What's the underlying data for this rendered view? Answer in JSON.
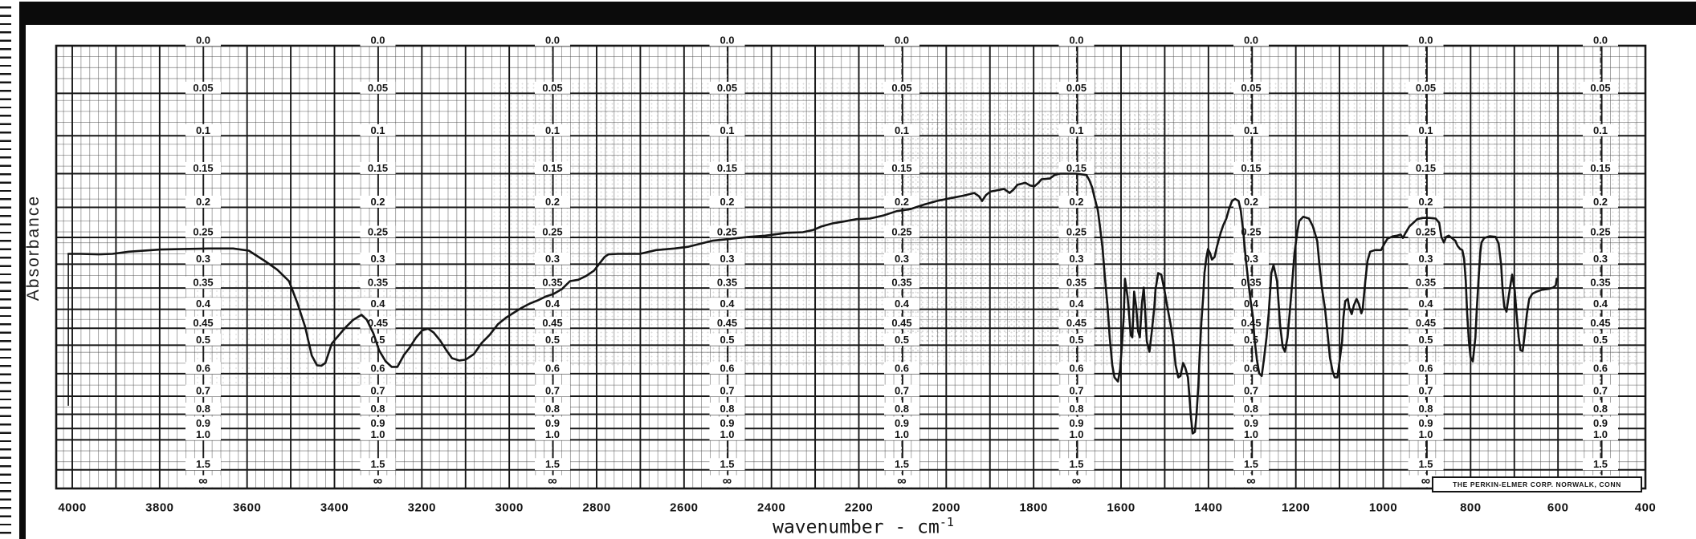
{
  "colors": {
    "ink": "#141414",
    "paper": "#ffffff",
    "grid_minor": "#4a4a4a",
    "grid_major": "#161616"
  },
  "chart_data": {
    "type": "line",
    "xlabel": "wavenumber - cm⁻¹",
    "xlabel_text": "wavenumber - cm",
    "xlabel_exponent": "-1",
    "ylabel": "Absorbance",
    "branding": "THE PERKIN-ELMER CORP. NORWALK, CONN",
    "x_axis": {
      "min": 400,
      "max": 4000,
      "unit": "cm⁻¹",
      "direction": "decreasing left to right",
      "major_step": 100,
      "minor_step": 20,
      "tick_step": 200,
      "tick_labels": [
        "4000",
        "3800",
        "3600",
        "3400",
        "3200",
        "3000",
        "2800",
        "2600",
        "2400",
        "2200",
        "2000",
        "1800",
        "1600",
        "1400",
        "1200",
        "1000",
        "800",
        "600",
        "400"
      ]
    },
    "y_axis": {
      "scale": "absorbance labels printed on a linear-transmittance grid",
      "grid": "on",
      "label_columns": 9,
      "tick_labels": [
        "0.0",
        "0.05",
        "0.1",
        "0.15",
        "0.2",
        "0.25",
        "0.3",
        "0.35",
        "0.4",
        "0.45",
        "0.5",
        "0.6",
        "0.7",
        "0.8",
        "0.9",
        "1.0",
        "1.5",
        "∞"
      ],
      "tick_values": [
        0,
        0.05,
        0.1,
        0.15,
        0.2,
        0.25,
        0.3,
        0.35,
        0.4,
        0.45,
        0.5,
        0.6,
        0.7,
        0.8,
        0.9,
        1.0,
        1.5,
        null
      ]
    },
    "pen_start_marker": {
      "wavenumber": 4009,
      "absorbance_from": 0.28,
      "absorbance_to": 0.75
    },
    "series": [
      {
        "name": "ir-absorbance-trace",
        "points": [
          [
            4009,
            0.28
          ],
          [
            3982,
            0.28
          ],
          [
            3940,
            0.281
          ],
          [
            3908,
            0.28
          ],
          [
            3871,
            0.276
          ],
          [
            3798,
            0.272
          ],
          [
            3688,
            0.27
          ],
          [
            3632,
            0.27
          ],
          [
            3596,
            0.274
          ],
          [
            3559,
            0.294
          ],
          [
            3531,
            0.311
          ],
          [
            3504,
            0.335
          ],
          [
            3485,
            0.384
          ],
          [
            3467,
            0.446
          ],
          [
            3452,
            0.534
          ],
          [
            3440,
            0.568
          ],
          [
            3430,
            0.57
          ],
          [
            3421,
            0.56
          ],
          [
            3406,
            0.495
          ],
          [
            3394,
            0.476
          ],
          [
            3375,
            0.448
          ],
          [
            3357,
            0.427
          ],
          [
            3338,
            0.414
          ],
          [
            3326,
            0.427
          ],
          [
            3311,
            0.464
          ],
          [
            3298,
            0.516
          ],
          [
            3283,
            0.554
          ],
          [
            3269,
            0.574
          ],
          [
            3256,
            0.574
          ],
          [
            3241,
            0.532
          ],
          [
            3228,
            0.508
          ],
          [
            3214,
            0.478
          ],
          [
            3199,
            0.456
          ],
          [
            3186,
            0.451
          ],
          [
            3173,
            0.462
          ],
          [
            3158,
            0.486
          ],
          [
            3144,
            0.516
          ],
          [
            3131,
            0.543
          ],
          [
            3114,
            0.551
          ],
          [
            3100,
            0.548
          ],
          [
            3081,
            0.529
          ],
          [
            3063,
            0.493
          ],
          [
            3045,
            0.469
          ],
          [
            3026,
            0.439
          ],
          [
            3008,
            0.422
          ],
          [
            2989,
            0.408
          ],
          [
            2971,
            0.396
          ],
          [
            2953,
            0.386
          ],
          [
            2934,
            0.378
          ],
          [
            2916,
            0.369
          ],
          [
            2898,
            0.363
          ],
          [
            2879,
            0.352
          ],
          [
            2861,
            0.335
          ],
          [
            2842,
            0.332
          ],
          [
            2824,
            0.324
          ],
          [
            2806,
            0.313
          ],
          [
            2782,
            0.286
          ],
          [
            2773,
            0.281
          ],
          [
            2751,
            0.28
          ],
          [
            2701,
            0.28
          ],
          [
            2664,
            0.273
          ],
          [
            2622,
            0.27
          ],
          [
            2591,
            0.267
          ],
          [
            2561,
            0.261
          ],
          [
            2536,
            0.256
          ],
          [
            2488,
            0.252
          ],
          [
            2451,
            0.249
          ],
          [
            2414,
            0.247
          ],
          [
            2365,
            0.242
          ],
          [
            2328,
            0.241
          ],
          [
            2304,
            0.237
          ],
          [
            2285,
            0.231
          ],
          [
            2260,
            0.226
          ],
          [
            2236,
            0.223
          ],
          [
            2205,
            0.219
          ],
          [
            2175,
            0.218
          ],
          [
            2144,
            0.213
          ],
          [
            2113,
            0.206
          ],
          [
            2083,
            0.203
          ],
          [
            2052,
            0.196
          ],
          [
            2021,
            0.19
          ],
          [
            1991,
            0.186
          ],
          [
            1960,
            0.182
          ],
          [
            1936,
            0.178
          ],
          [
            1925,
            0.183
          ],
          [
            1918,
            0.19
          ],
          [
            1909,
            0.181
          ],
          [
            1899,
            0.176
          ],
          [
            1868,
            0.172
          ],
          [
            1859,
            0.176
          ],
          [
            1855,
            0.178
          ],
          [
            1846,
            0.173
          ],
          [
            1837,
            0.166
          ],
          [
            1819,
            0.163
          ],
          [
            1808,
            0.167
          ],
          [
            1798,
            0.168
          ],
          [
            1789,
            0.163
          ],
          [
            1782,
            0.158
          ],
          [
            1763,
            0.157
          ],
          [
            1752,
            0.152
          ],
          [
            1740,
            0.15
          ],
          [
            1703,
            0.15
          ],
          [
            1679,
            0.152
          ],
          [
            1672,
            0.16
          ],
          [
            1666,
            0.17
          ],
          [
            1661,
            0.184
          ],
          [
            1653,
            0.205
          ],
          [
            1648,
            0.233
          ],
          [
            1642,
            0.271
          ],
          [
            1637,
            0.327
          ],
          [
            1631,
            0.39
          ],
          [
            1626,
            0.476
          ],
          [
            1620,
            0.568
          ],
          [
            1615,
            0.615
          ],
          [
            1607,
            0.632
          ],
          [
            1602,
            0.583
          ],
          [
            1598,
            0.5
          ],
          [
            1594,
            0.42
          ],
          [
            1591,
            0.33
          ],
          [
            1585,
            0.371
          ],
          [
            1581,
            0.42
          ],
          [
            1578,
            0.469
          ],
          [
            1574,
            0.476
          ],
          [
            1570,
            0.358
          ],
          [
            1565,
            0.396
          ],
          [
            1561,
            0.458
          ],
          [
            1557,
            0.476
          ],
          [
            1552,
            0.384
          ],
          [
            1548,
            0.349
          ],
          [
            1545,
            0.4
          ],
          [
            1541,
            0.488
          ],
          [
            1535,
            0.521
          ],
          [
            1530,
            0.464
          ],
          [
            1524,
            0.396
          ],
          [
            1521,
            0.352
          ],
          [
            1515,
            0.318
          ],
          [
            1508,
            0.321
          ],
          [
            1500,
            0.358
          ],
          [
            1493,
            0.4
          ],
          [
            1486,
            0.442
          ],
          [
            1480,
            0.495
          ],
          [
            1475,
            0.568
          ],
          [
            1469,
            0.615
          ],
          [
            1464,
            0.609
          ],
          [
            1458,
            0.56
          ],
          [
            1453,
            0.577
          ],
          [
            1447,
            0.615
          ],
          [
            1444,
            0.686
          ],
          [
            1440,
            0.821
          ],
          [
            1436,
            0.941
          ],
          [
            1431,
            0.927
          ],
          [
            1427,
            0.795
          ],
          [
            1423,
            0.649
          ],
          [
            1420,
            0.526
          ],
          [
            1416,
            0.431
          ],
          [
            1412,
            0.371
          ],
          [
            1409,
            0.318
          ],
          [
            1405,
            0.289
          ],
          [
            1401,
            0.271
          ],
          [
            1396,
            0.279
          ],
          [
            1392,
            0.291
          ],
          [
            1386,
            0.286
          ],
          [
            1381,
            0.268
          ],
          [
            1377,
            0.256
          ],
          [
            1372,
            0.242
          ],
          [
            1366,
            0.229
          ],
          [
            1359,
            0.218
          ],
          [
            1353,
            0.203
          ],
          [
            1346,
            0.19
          ],
          [
            1339,
            0.187
          ],
          [
            1331,
            0.19
          ],
          [
            1326,
            0.205
          ],
          [
            1320,
            0.242
          ],
          [
            1315,
            0.286
          ],
          [
            1309,
            0.335
          ],
          [
            1304,
            0.375
          ],
          [
            1298,
            0.42
          ],
          [
            1295,
            0.476
          ],
          [
            1289,
            0.548
          ],
          [
            1284,
            0.599
          ],
          [
            1278,
            0.609
          ],
          [
            1273,
            0.548
          ],
          [
            1267,
            0.476
          ],
          [
            1262,
            0.41
          ],
          [
            1256,
            0.318
          ],
          [
            1251,
            0.302
          ],
          [
            1243,
            0.335
          ],
          [
            1236,
            0.442
          ],
          [
            1230,
            0.505
          ],
          [
            1225,
            0.521
          ],
          [
            1219,
            0.476
          ],
          [
            1214,
            0.41
          ],
          [
            1208,
            0.335
          ],
          [
            1203,
            0.279
          ],
          [
            1197,
            0.242
          ],
          [
            1192,
            0.222
          ],
          [
            1183,
            0.215
          ],
          [
            1170,
            0.218
          ],
          [
            1161,
            0.231
          ],
          [
            1151,
            0.256
          ],
          [
            1146,
            0.302
          ],
          [
            1140,
            0.352
          ],
          [
            1133,
            0.4
          ],
          [
            1127,
            0.469
          ],
          [
            1122,
            0.54
          ],
          [
            1116,
            0.59
          ],
          [
            1111,
            0.615
          ],
          [
            1105,
            0.615
          ],
          [
            1100,
            0.554
          ],
          [
            1094,
            0.488
          ],
          [
            1091,
            0.42
          ],
          [
            1087,
            0.38
          ],
          [
            1081,
            0.375
          ],
          [
            1078,
            0.396
          ],
          [
            1072,
            0.412
          ],
          [
            1067,
            0.39
          ],
          [
            1061,
            0.375
          ],
          [
            1056,
            0.386
          ],
          [
            1050,
            0.41
          ],
          [
            1047,
            0.4
          ],
          [
            1041,
            0.335
          ],
          [
            1036,
            0.294
          ],
          [
            1030,
            0.276
          ],
          [
            1019,
            0.273
          ],
          [
            1005,
            0.273
          ],
          [
            997,
            0.261
          ],
          [
            990,
            0.252
          ],
          [
            977,
            0.248
          ],
          [
            968,
            0.247
          ],
          [
            960,
            0.245
          ],
          [
            955,
            0.251
          ],
          [
            949,
            0.242
          ],
          [
            940,
            0.231
          ],
          [
            931,
            0.225
          ],
          [
            922,
            0.219
          ],
          [
            909,
            0.217
          ],
          [
            894,
            0.217
          ],
          [
            880,
            0.218
          ],
          [
            872,
            0.225
          ],
          [
            867,
            0.249
          ],
          [
            861,
            0.259
          ],
          [
            856,
            0.249
          ],
          [
            850,
            0.247
          ],
          [
            843,
            0.251
          ],
          [
            835,
            0.256
          ],
          [
            830,
            0.265
          ],
          [
            824,
            0.271
          ],
          [
            819,
            0.273
          ],
          [
            815,
            0.289
          ],
          [
            811,
            0.335
          ],
          [
            808,
            0.41
          ],
          [
            804,
            0.488
          ],
          [
            800,
            0.54
          ],
          [
            795,
            0.554
          ],
          [
            789,
            0.476
          ],
          [
            786,
            0.4
          ],
          [
            782,
            0.335
          ],
          [
            778,
            0.279
          ],
          [
            775,
            0.259
          ],
          [
            769,
            0.251
          ],
          [
            756,
            0.248
          ],
          [
            743,
            0.249
          ],
          [
            736,
            0.261
          ],
          [
            730,
            0.302
          ],
          [
            727,
            0.352
          ],
          [
            723,
            0.394
          ],
          [
            718,
            0.406
          ],
          [
            714,
            0.377
          ],
          [
            708,
            0.338
          ],
          [
            705,
            0.321
          ],
          [
            699,
            0.356
          ],
          [
            695,
            0.41
          ],
          [
            690,
            0.476
          ],
          [
            686,
            0.516
          ],
          [
            681,
            0.519
          ],
          [
            677,
            0.476
          ],
          [
            671,
            0.41
          ],
          [
            666,
            0.375
          ],
          [
            659,
            0.363
          ],
          [
            649,
            0.358
          ],
          [
            637,
            0.354
          ],
          [
            622,
            0.352
          ],
          [
            611,
            0.349
          ],
          [
            605,
            0.344
          ],
          [
            603,
            0.33
          ]
        ]
      }
    ]
  }
}
